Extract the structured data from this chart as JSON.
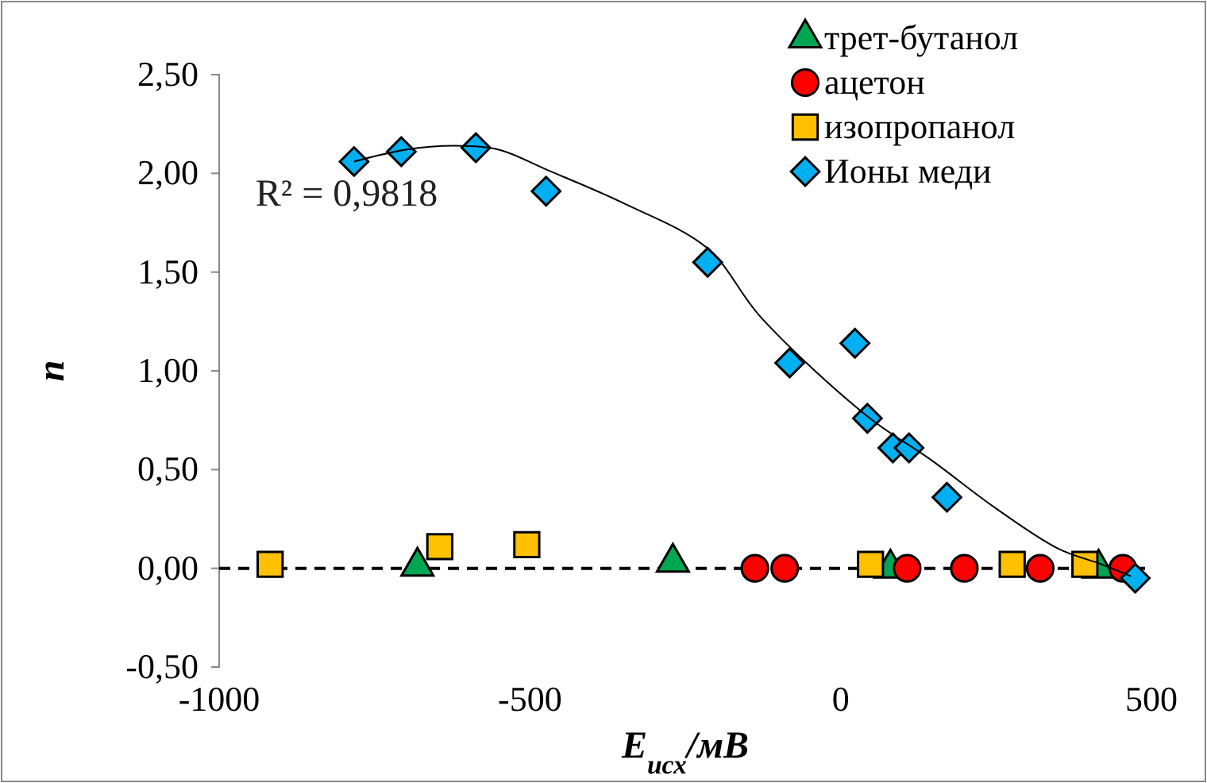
{
  "chart_data": {
    "type": "scatter",
    "xlabel": "E$_{исх}$/мВ",
    "ylabel": "n",
    "xlim": [
      -1000,
      500
    ],
    "xticks": [
      -1000,
      -500,
      0,
      500
    ],
    "ylim": [
      -0.5,
      2.5
    ],
    "yticks": [
      {
        "value": -0.5,
        "label": "-0,50"
      },
      {
        "value": 0,
        "label": "0,00"
      },
      {
        "value": 0.5,
        "label": "0,50"
      },
      {
        "value": 1,
        "label": "1,00"
      },
      {
        "value": 1.5,
        "label": "1,50"
      },
      {
        "value": 2,
        "label": "2,00"
      },
      {
        "value": 2.5,
        "label": "2,50"
      }
    ],
    "grid": false,
    "legend": "top right",
    "annotations": [
      {
        "text": "R² = 0,9818",
        "x": -783,
        "y": 2.06
      }
    ],
    "ref_lines": [
      {
        "axis": "y",
        "value": 0,
        "color": "#000000",
        "line_style": "dashed"
      }
    ],
    "series": [
      {
        "name": "трет-бутанол",
        "color": "#00a651",
        "marker": "triangle",
        "x": [
          -681,
          -270,
          80,
          415
        ],
        "values": [
          0.01,
          0.03,
          0.0,
          0.0
        ]
      },
      {
        "name": "ацетон",
        "color": "#ff0000",
        "marker": "circle",
        "x": [
          -138,
          -90,
          107,
          199,
          321,
          454
        ],
        "values": [
          0.0,
          0.0,
          0.0,
          0.0,
          0.0,
          0.0
        ]
      },
      {
        "name": "изопропанол",
        "color": "#ffc000",
        "marker": "square",
        "x": [
          -918,
          -645,
          -505,
          48,
          276,
          393
        ],
        "values": [
          0.02,
          0.11,
          0.12,
          0.02,
          0.02,
          0.02
        ]
      },
      {
        "name": "Ионы меди",
        "color": "#00b0f0",
        "marker": "diamond",
        "x": [
          -783,
          -707,
          -587,
          -474,
          -214,
          -82,
          23,
          43,
          84,
          110,
          171,
          474
        ],
        "values": [
          2.06,
          2.11,
          2.13,
          1.91,
          1.55,
          1.04,
          1.14,
          0.76,
          0.61,
          0.61,
          0.36,
          -0.05
        ]
      },
      {
        "type": "line",
        "color": "#000000",
        "marker": "none",
        "x": [
          -783,
          -700,
          -620,
          -550,
          -474,
          -350,
          -214,
          -128,
          43,
          145,
          247,
          350,
          420,
          467
        ],
        "values": [
          2.06,
          2.12,
          2.14,
          2.12,
          2.02,
          1.85,
          1.62,
          1.27,
          0.77,
          0.55,
          0.31,
          0.1,
          0.02,
          -0.04
        ]
      }
    ]
  }
}
